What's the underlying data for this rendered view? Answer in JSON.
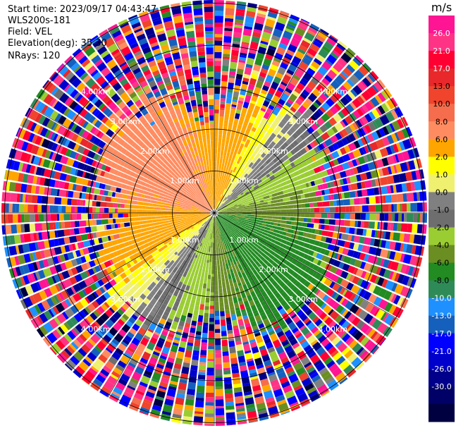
{
  "header": {
    "start_time": "Start time: 2023/09/17 04:43:47",
    "instrument": "WLS200s-181",
    "field": "Field: VEL",
    "elevation": "Elevation(deg): 35.30",
    "nrays": "NRays: 120"
  },
  "chart_data": {
    "type": "heatmap",
    "subtype": "polar-ppi",
    "field": "VEL",
    "units": "m/s",
    "elevation_deg": 35.3,
    "n_rays": 120,
    "range_rings_km": [
      1,
      2,
      3,
      4,
      5,
      6,
      7
    ],
    "ring_labels": [
      "1.00km",
      "2.00km",
      "3.00km",
      "4.00km",
      "5.00km",
      "6.00km",
      "7.00km"
    ],
    "colorbar": {
      "ticks": [
        26.0,
        21.0,
        17.0,
        13.0,
        10.0,
        8.0,
        6.0,
        2.0,
        1.0,
        0.0,
        -1.0,
        -2.0,
        -4.0,
        -6.0,
        -8.0,
        -10.0,
        -13.0,
        -17.0,
        -21.0,
        -26.0,
        -30.0
      ],
      "tick_labels": [
        "26.0",
        "21.0",
        "17.0",
        "13.0",
        "10.0",
        "8.0",
        "6.0",
        "2.0",
        "1.0",
        "0.0",
        "-1.0",
        "-2.0",
        "-4.0",
        "-6.0",
        "-8.0",
        "-10.0",
        "-13.0",
        "-17.0",
        "-21.0",
        "-26.0",
        "-30.0"
      ],
      "colors": [
        "#ff1493",
        "#ff3385",
        "#ff0033",
        "#e8282a",
        "#f0442c",
        "#f56d4c",
        "#ff8c60",
        "#ffa500",
        "#ffff00",
        "#f0f070",
        "#808080",
        "#6e6e6e",
        "#9acd32",
        "#6b8e23",
        "#228b22",
        "#2e8b57",
        "#1e90ff",
        "#1560bd",
        "#0000ff",
        "#0000cd",
        "#00008b",
        "#000066",
        "#000040"
      ]
    }
  }
}
